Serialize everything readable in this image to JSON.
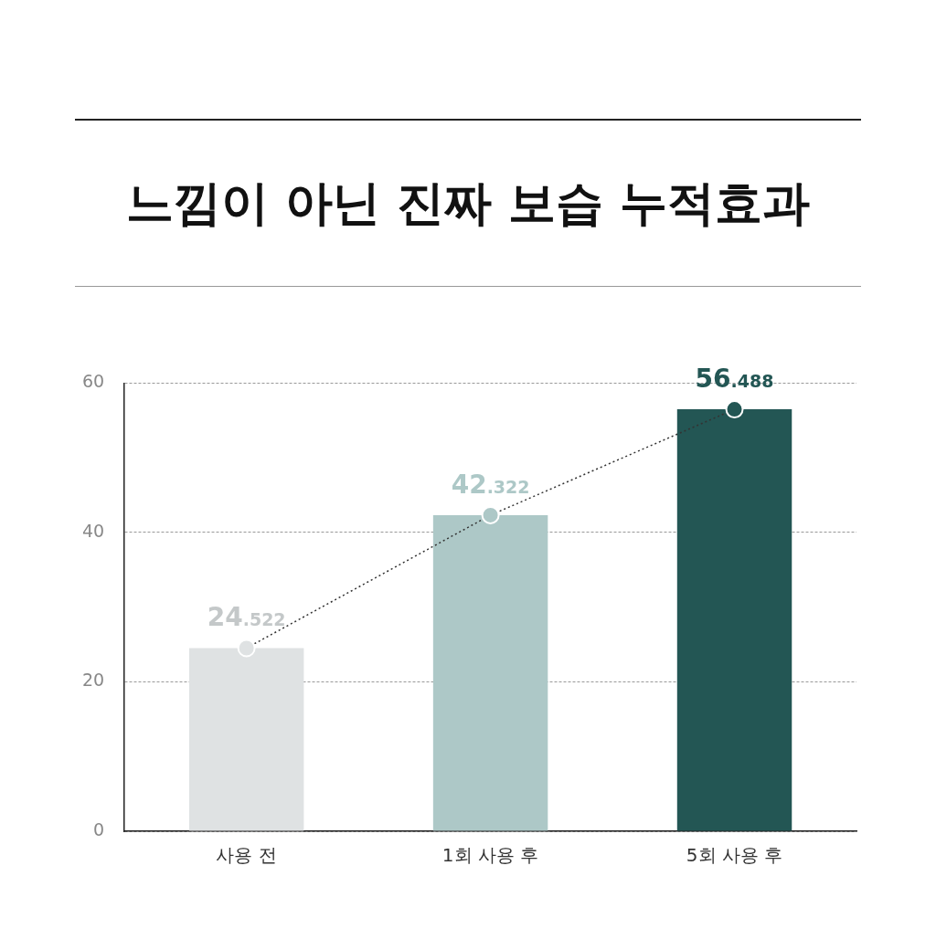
{
  "chart_data": {
    "type": "bar",
    "title": "느낌이 아닌 진짜 보습 누적효과",
    "categories": [
      "사용 전",
      "1회 사용 후",
      "5회 사용 후"
    ],
    "series": [
      {
        "colors": [
          "#dfe2e3",
          "#adc8c7",
          "#235654"
        ],
        "values": [
          24.522,
          42.322,
          56.488
        ]
      },
      {
        "type": "line",
        "color": "#333333",
        "colors": [
          "#dfe2e3",
          "#adc8c7",
          "#235654"
        ],
        "values": [
          24.522,
          42.322,
          56.488
        ],
        "value_labels": [
          "24.522",
          "42.322",
          "56.488"
        ]
      }
    ],
    "ylim": [
      0,
      60
    ],
    "yticks": [
      0,
      20,
      40,
      60
    ],
    "grid": "y",
    "legend": false,
    "marker": "circle",
    "line_style": "dotted"
  }
}
